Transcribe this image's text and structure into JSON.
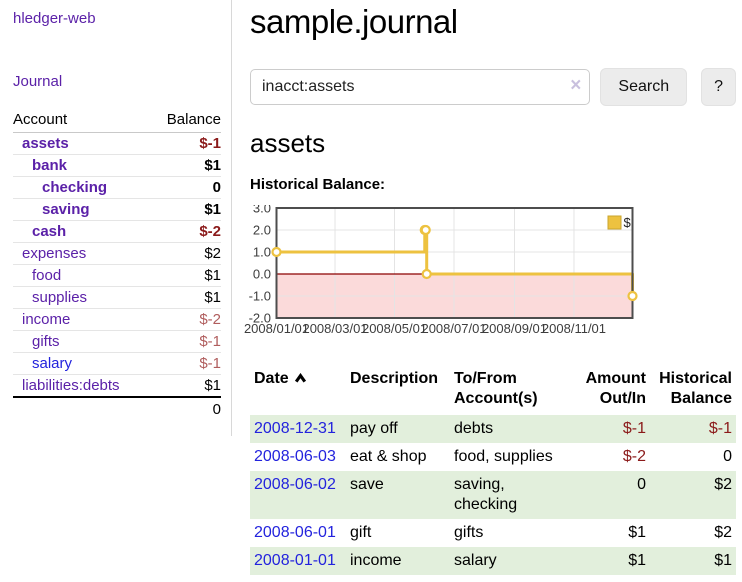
{
  "app": {
    "brand": "hledger-web"
  },
  "sidebar": {
    "journal_link": "Journal",
    "accounts_table": {
      "col_account": "Account",
      "col_balance": "Balance",
      "rows": [
        {
          "account": "assets",
          "balance": "$-1",
          "level": 1,
          "bold": true,
          "balance_tone": "neg-strong"
        },
        {
          "account": "bank",
          "balance": "$1",
          "level": 2,
          "bold": true,
          "balance_tone": "pos"
        },
        {
          "account": "checking",
          "balance": "0",
          "level": 3,
          "bold": true,
          "balance_tone": "pos"
        },
        {
          "account": "saving",
          "balance": "$1",
          "level": 3,
          "bold": true,
          "balance_tone": "pos"
        },
        {
          "account": "cash",
          "balance": "$-2",
          "level": 2,
          "bold": true,
          "balance_tone": "neg-strong"
        },
        {
          "account": "expenses",
          "balance": "$2",
          "level": 1,
          "bold": false,
          "balance_tone": "pos"
        },
        {
          "account": "food",
          "balance": "$1",
          "level": 2,
          "bold": false,
          "balance_tone": "pos"
        },
        {
          "account": "supplies",
          "balance": "$1",
          "level": 2,
          "bold": false,
          "balance_tone": "pos"
        },
        {
          "account": "income",
          "balance": "$-2",
          "level": 1,
          "bold": false,
          "balance_tone": "neg-soft"
        },
        {
          "account": "gifts",
          "balance": "$-1",
          "level": 2,
          "bold": false,
          "balance_tone": "neg-soft"
        },
        {
          "account": "salary",
          "balance": "$-1",
          "level": 2,
          "bold": false,
          "balance_tone": "neg-soft",
          "link_tone": "blue"
        },
        {
          "account": "liabilities:debts",
          "balance": "$1",
          "level": 1,
          "bold": false,
          "balance_tone": "pos"
        }
      ],
      "total": "0"
    }
  },
  "main": {
    "title": "sample.journal",
    "search": {
      "value": "inacct:assets",
      "clear": "×",
      "button": "Search",
      "help": "?"
    },
    "account_heading": "assets",
    "chart_title": "Historical Balance:"
  },
  "chart_data": {
    "type": "line",
    "steps": true,
    "title": "Historical Balance of assets",
    "legend": [
      {
        "label": "$",
        "color": "#edc240"
      }
    ],
    "legend_position": "top-right",
    "ylim": [
      -2.0,
      3.0
    ],
    "ytick_labels": [
      "3.0",
      "2.0",
      "1.0",
      "0.0",
      "-1.0",
      "-2.0"
    ],
    "yticks": [
      3,
      2,
      1,
      0,
      -1,
      -2
    ],
    "xticks": [
      {
        "label": "2008/01/01",
        "day": 0
      },
      {
        "label": "2008/03/01",
        "day": 60
      },
      {
        "label": "2008/05/01",
        "day": 121
      },
      {
        "label": "2008/07/01",
        "day": 182
      },
      {
        "label": "2008/09/01",
        "day": 244
      },
      {
        "label": "2008/11/01",
        "day": 305
      }
    ],
    "x_range_days": [
      0,
      365
    ],
    "series": [
      {
        "name": "$",
        "color": "#edc240",
        "points": [
          {
            "date": "2008-01-01",
            "day": 0,
            "value": 1
          },
          {
            "date": "2008-06-01",
            "day": 152,
            "value": 2
          },
          {
            "date": "2008-06-02",
            "day": 153,
            "value": 2
          },
          {
            "date": "2008-06-03",
            "day": 154,
            "value": 0
          },
          {
            "date": "2008-12-31",
            "day": 365,
            "value": -1
          }
        ]
      }
    ],
    "grid": true,
    "zero_line_color": "#8b0000",
    "negative_area_color": "#fbdada",
    "border_color": "#4d4d4d",
    "gridline_color": "#e4e4e4"
  },
  "register": {
    "headers": {
      "date": "Date",
      "description": "Description",
      "accounts": "To/From\nAccount(s)",
      "amount": "Amount\nOut/In",
      "balance": "Historical\nBalance"
    },
    "sort": {
      "column": "date",
      "icon": "chevron-up"
    },
    "rows": [
      {
        "date": "2008-12-31",
        "description": "pay off",
        "accounts": "debts",
        "amount": "$-1",
        "amount_tone": "neg",
        "balance": "$-1",
        "balance_tone": "neg"
      },
      {
        "date": "2008-06-03",
        "description": "eat & shop",
        "accounts": "food, supplies",
        "amount": "$-2",
        "amount_tone": "neg",
        "balance": "0",
        "balance_tone": "pos"
      },
      {
        "date": "2008-06-02",
        "description": "save",
        "accounts": "saving,\nchecking",
        "amount": "0",
        "amount_tone": "pos",
        "balance": "$2",
        "balance_tone": "pos"
      },
      {
        "date": "2008-06-01",
        "description": "gift",
        "accounts": "gifts",
        "amount": "$1",
        "amount_tone": "pos",
        "balance": "$2",
        "balance_tone": "pos"
      },
      {
        "date": "2008-01-01",
        "description": "income",
        "accounts": "salary",
        "amount": "$1",
        "amount_tone": "pos",
        "balance": "$1",
        "balance_tone": "pos"
      }
    ]
  },
  "colors": {
    "link_purple": "#5b21a8",
    "link_blue": "#2323dd",
    "negative_strong": "#8b1a1a",
    "negative_soft": "#b05d5d",
    "row_stripe_green": "#e2efdc",
    "chart_series_yellow": "#edc240",
    "chart_zero_line_red": "#8b0000",
    "chart_negative_fill_pink": "#fbdada",
    "button_bg": "#ececec"
  }
}
